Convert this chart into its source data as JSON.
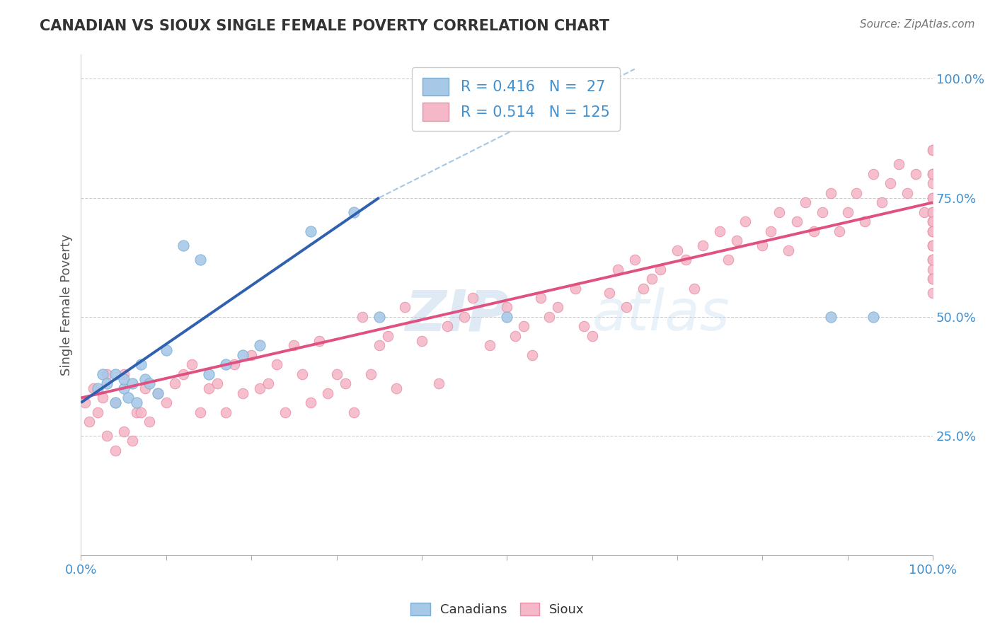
{
  "title": "CANADIAN VS SIOUX SINGLE FEMALE POVERTY CORRELATION CHART",
  "source_text": "Source: ZipAtlas.com",
  "ylabel": "Single Female Poverty",
  "x_min": 0.0,
  "x_max": 1.0,
  "y_min": 0.0,
  "y_max": 1.05,
  "canadian_color": "#a8c8e8",
  "canadian_edge": "#7aaed0",
  "sioux_color": "#f4b8c8",
  "sioux_edge": "#e890a8",
  "canadian_line_color": "#3060b0",
  "sioux_line_color": "#e05080",
  "dashed_line_color": "#90b8e0",
  "r_canadian": 0.416,
  "n_canadian": 27,
  "r_sioux": 0.514,
  "n_sioux": 125,
  "background_color": "#ffffff",
  "grid_color": "#cccccc",
  "watermark": "ZIPatlas",
  "watermark_color": "#b8d8f0",
  "tick_color": "#4090d0",
  "title_color": "#333333",
  "ylabel_color": "#555555",
  "source_color": "#777777",
  "can_line_x0": 0.0,
  "can_line_y0": 0.32,
  "can_line_x1": 0.35,
  "can_line_y1": 0.75,
  "sioux_line_x0": 0.0,
  "sioux_line_y0": 0.33,
  "sioux_line_x1": 1.0,
  "sioux_line_y1": 0.74,
  "dash_line_x0": 0.35,
  "dash_line_y0": 0.75,
  "dash_line_x1": 0.65,
  "dash_line_y1": 1.02,
  "can_x": [
    0.02,
    0.025,
    0.03,
    0.04,
    0.04,
    0.05,
    0.05,
    0.055,
    0.06,
    0.065,
    0.07,
    0.075,
    0.08,
    0.09,
    0.1,
    0.12,
    0.14,
    0.15,
    0.17,
    0.19,
    0.21,
    0.5,
    0.27,
    0.32,
    0.35,
    0.88,
    0.93
  ],
  "can_y": [
    0.35,
    0.38,
    0.36,
    0.32,
    0.38,
    0.35,
    0.37,
    0.33,
    0.36,
    0.32,
    0.4,
    0.37,
    0.36,
    0.34,
    0.43,
    0.65,
    0.62,
    0.38,
    0.4,
    0.42,
    0.44,
    0.5,
    0.68,
    0.72,
    0.5,
    0.5,
    0.5
  ],
  "sioux_x": [
    0.005,
    0.01,
    0.015,
    0.02,
    0.025,
    0.03,
    0.03,
    0.04,
    0.04,
    0.05,
    0.05,
    0.06,
    0.065,
    0.07,
    0.075,
    0.08,
    0.09,
    0.1,
    0.11,
    0.12,
    0.13,
    0.14,
    0.15,
    0.16,
    0.17,
    0.18,
    0.19,
    0.2,
    0.21,
    0.22,
    0.23,
    0.24,
    0.25,
    0.26,
    0.27,
    0.28,
    0.29,
    0.3,
    0.31,
    0.32,
    0.33,
    0.34,
    0.35,
    0.36,
    0.37,
    0.38,
    0.4,
    0.42,
    0.43,
    0.45,
    0.46,
    0.48,
    0.5,
    0.51,
    0.52,
    0.53,
    0.54,
    0.55,
    0.56,
    0.58,
    0.59,
    0.6,
    0.62,
    0.63,
    0.64,
    0.65,
    0.66,
    0.67,
    0.68,
    0.7,
    0.71,
    0.72,
    0.73,
    0.75,
    0.76,
    0.77,
    0.78,
    0.8,
    0.81,
    0.82,
    0.83,
    0.84,
    0.85,
    0.86,
    0.87,
    0.88,
    0.89,
    0.9,
    0.91,
    0.92,
    0.93,
    0.94,
    0.95,
    0.96,
    0.97,
    0.98,
    0.99,
    1.0,
    1.0,
    1.0,
    1.0,
    1.0,
    1.0,
    1.0,
    1.0,
    1.0,
    1.0,
    1.0,
    1.0,
    1.0,
    1.0,
    1.0,
    1.0,
    1.0,
    1.0,
    1.0,
    1.0,
    1.0,
    1.0,
    1.0,
    1.0,
    1.0,
    1.0,
    1.0,
    1.0
  ],
  "sioux_y": [
    0.32,
    0.28,
    0.35,
    0.3,
    0.33,
    0.25,
    0.38,
    0.22,
    0.32,
    0.26,
    0.38,
    0.24,
    0.3,
    0.3,
    0.35,
    0.28,
    0.34,
    0.32,
    0.36,
    0.38,
    0.4,
    0.3,
    0.35,
    0.36,
    0.3,
    0.4,
    0.34,
    0.42,
    0.35,
    0.36,
    0.4,
    0.3,
    0.44,
    0.38,
    0.32,
    0.45,
    0.34,
    0.38,
    0.36,
    0.3,
    0.5,
    0.38,
    0.44,
    0.46,
    0.35,
    0.52,
    0.45,
    0.36,
    0.48,
    0.5,
    0.54,
    0.44,
    0.52,
    0.46,
    0.48,
    0.42,
    0.54,
    0.5,
    0.52,
    0.56,
    0.48,
    0.46,
    0.55,
    0.6,
    0.52,
    0.62,
    0.56,
    0.58,
    0.6,
    0.64,
    0.62,
    0.56,
    0.65,
    0.68,
    0.62,
    0.66,
    0.7,
    0.65,
    0.68,
    0.72,
    0.64,
    0.7,
    0.74,
    0.68,
    0.72,
    0.76,
    0.68,
    0.72,
    0.76,
    0.7,
    0.8,
    0.74,
    0.78,
    0.82,
    0.76,
    0.8,
    0.72,
    0.85,
    0.72,
    0.6,
    0.65,
    0.7,
    0.55,
    0.68,
    0.75,
    0.8,
    0.62,
    0.72,
    0.58,
    0.65,
    0.7,
    0.75,
    0.62,
    0.68,
    0.8,
    0.72,
    0.58,
    0.65,
    0.78,
    0.7,
    0.62,
    0.75,
    0.8,
    0.85,
    0.68
  ]
}
